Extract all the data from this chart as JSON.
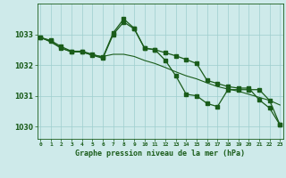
{
  "title": "Graphe pression niveau de la mer (hPa)",
  "bg_color": "#ceeaea",
  "grid_color": "#9ecece",
  "line_color": "#1a5c1a",
  "x_labels": [
    "0",
    "1",
    "2",
    "3",
    "4",
    "5",
    "6",
    "7",
    "8",
    "9",
    "10",
    "11",
    "12",
    "13",
    "14",
    "15",
    "16",
    "17",
    "18",
    "19",
    "20",
    "21",
    "22",
    "23"
  ],
  "ylim": [
    1029.6,
    1034.0
  ],
  "yticks": [
    1030,
    1031,
    1032,
    1033
  ],
  "series1": [
    1032.9,
    1032.8,
    1032.6,
    1032.45,
    1032.45,
    1032.35,
    1032.25,
    1033.05,
    1033.5,
    1033.2,
    1032.55,
    1032.5,
    1032.15,
    1031.65,
    1031.05,
    1031.0,
    1030.75,
    1030.65,
    1031.2,
    1031.2,
    1031.2,
    1031.2,
    1030.85,
    1030.05
  ],
  "series2": [
    1032.9,
    1032.75,
    1032.55,
    1032.43,
    1032.43,
    1032.32,
    1032.28,
    1032.35,
    1032.35,
    1032.28,
    1032.15,
    1032.05,
    1031.92,
    1031.78,
    1031.65,
    1031.55,
    1031.42,
    1031.3,
    1031.22,
    1031.15,
    1031.05,
    1030.95,
    1030.85,
    1030.7
  ],
  "series3": [
    1032.9,
    1032.77,
    1032.55,
    1032.43,
    1032.43,
    1032.32,
    1032.22,
    1033.0,
    1033.4,
    1033.18,
    1032.55,
    1032.5,
    1032.4,
    1032.3,
    1032.18,
    1032.05,
    1031.5,
    1031.4,
    1031.3,
    1031.25,
    1031.25,
    1030.87,
    1030.6,
    1030.05
  ]
}
